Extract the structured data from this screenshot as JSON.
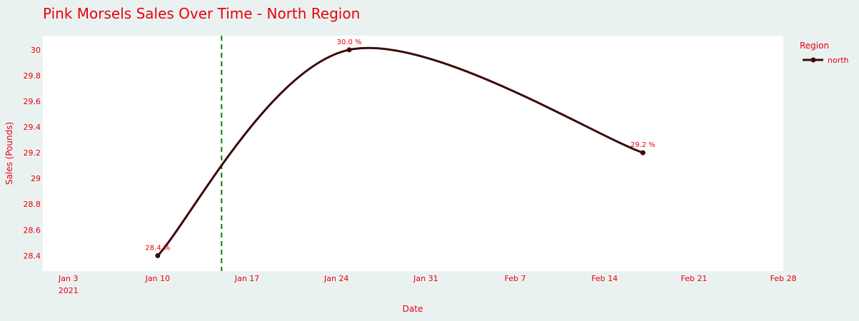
{
  "colors": {
    "page_bg": "#eaf2f1",
    "plot_bg": "#ffffff",
    "text": "#e8000b",
    "line": "#3b0a0a",
    "marker_line": "#008000"
  },
  "chart_data": {
    "type": "line",
    "title": "Pink Morsels Sales Over Time - North  Region",
    "xlabel": "Date",
    "ylabel": "Sales (Pounds)",
    "x_tick_labels": [
      "Jan 3",
      "Jan 10",
      "Jan 17",
      "Jan 24",
      "Jan 31",
      "Feb 7",
      "Feb 14",
      "Feb 21",
      "Feb 28"
    ],
    "x_tick_dates": [
      "2021-01-03",
      "2021-01-10",
      "2021-01-17",
      "2021-01-24",
      "2021-01-31",
      "2021-02-07",
      "2021-02-14",
      "2021-02-21",
      "2021-02-28"
    ],
    "x_year_label": "2021",
    "xlim": [
      "2021-01-01",
      "2021-02-28"
    ],
    "y_ticks": [
      28.4,
      28.6,
      28.8,
      29,
      29.2,
      29.4,
      29.6,
      29.8,
      30
    ],
    "y_tick_labels": [
      "28.4",
      "28.6",
      "28.8",
      "29",
      "29.2",
      "29.4",
      "29.6",
      "29.8",
      "30"
    ],
    "ylim": [
      28.28,
      30.11
    ],
    "grid": false,
    "legend": {
      "title": "Region",
      "position": "top-right"
    },
    "series": [
      {
        "name": "north",
        "x": [
          "2021-01-10",
          "2021-01-25",
          "2021-02-17"
        ],
        "values": [
          28.4,
          30.0,
          29.2
        ],
        "labels": [
          "28.4 %",
          "30.0 %",
          "29.2 %"
        ]
      }
    ],
    "vertical_marker": {
      "x": "2021-01-15",
      "style": "dashed"
    }
  }
}
